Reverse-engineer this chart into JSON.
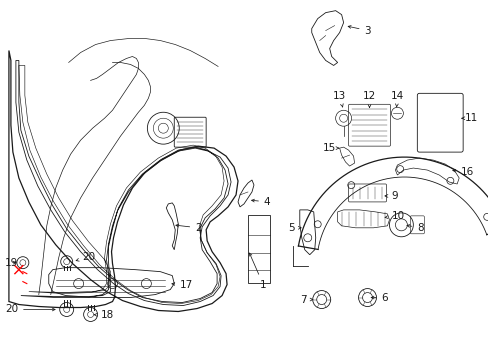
{
  "bg_color": "#ffffff",
  "line_color": "#1a1a1a",
  "figsize": [
    4.89,
    3.6
  ],
  "dpi": 100,
  "lw_main": 0.9,
  "lw_thin": 0.6,
  "lw_xtra": 0.4,
  "font_size": 7.0
}
